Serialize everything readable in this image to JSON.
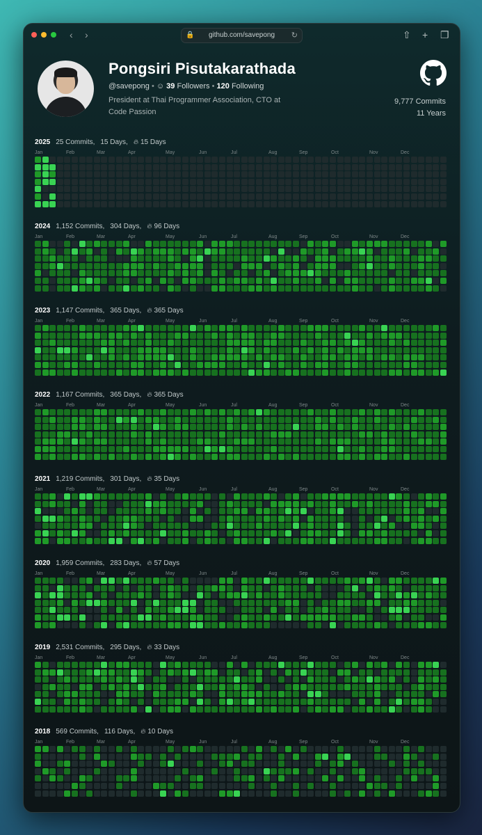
{
  "browser": {
    "url": "github.com/savepong",
    "nav_back": "‹",
    "nav_forward": "›"
  },
  "profile": {
    "name": "Pongsiri Pisutakarathada",
    "handle": "@savepong",
    "followers_count": "39",
    "followers_label": "Followers",
    "following_count": "120",
    "following_label": "Following",
    "bio": "President at Thai Programmer Association, CTO at Code Passion",
    "total_commits": "9,777 Commits",
    "total_years": "11 Years"
  },
  "months": [
    "Jan",
    "Feb",
    "Mar",
    "Apr",
    "May",
    "Jun",
    "Jul",
    "Aug",
    "Sep",
    "Oct",
    "Nov",
    "Dec"
  ],
  "colors": {
    "empty": "#1f2b2d",
    "level1": "#0d4a1c",
    "level2": "#17711f",
    "level3": "#1f9a28",
    "level4": "#39d353"
  },
  "years": [
    {
      "year": "2025",
      "commits": "25 Commits,",
      "days": "15 Days,",
      "streak": "15 Days",
      "activity": 0.02,
      "peak": 0.15
    },
    {
      "year": "2024",
      "commits": "1,152 Commits,",
      "days": "304 Days,",
      "streak": "96 Days",
      "activity": 0.83,
      "peak": 0.05
    },
    {
      "year": "2023",
      "commits": "1,147 Commits,",
      "days": "365 Days,",
      "streak": "365 Days",
      "activity": 1.0,
      "peak": 0.02
    },
    {
      "year": "2022",
      "commits": "1,167 Commits,",
      "days": "365 Days,",
      "streak": "365 Days",
      "activity": 1.0,
      "peak": 0.03
    },
    {
      "year": "2021",
      "commits": "1,219 Commits,",
      "days": "301 Days,",
      "streak": "35 Days",
      "activity": 0.82,
      "peak": 0.08
    },
    {
      "year": "2020",
      "commits": "1,959 Commits,",
      "days": "283 Days,",
      "streak": "57 Days",
      "activity": 0.78,
      "peak": 0.1
    },
    {
      "year": "2019",
      "commits": "2,531 Commits,",
      "days": "295 Days,",
      "streak": "33 Days",
      "activity": 0.81,
      "peak": 0.08
    },
    {
      "year": "2018",
      "commits": "569 Commits,",
      "days": "116 Days,",
      "streak": "10 Days",
      "activity": 0.32,
      "peak": 0.08
    }
  ]
}
